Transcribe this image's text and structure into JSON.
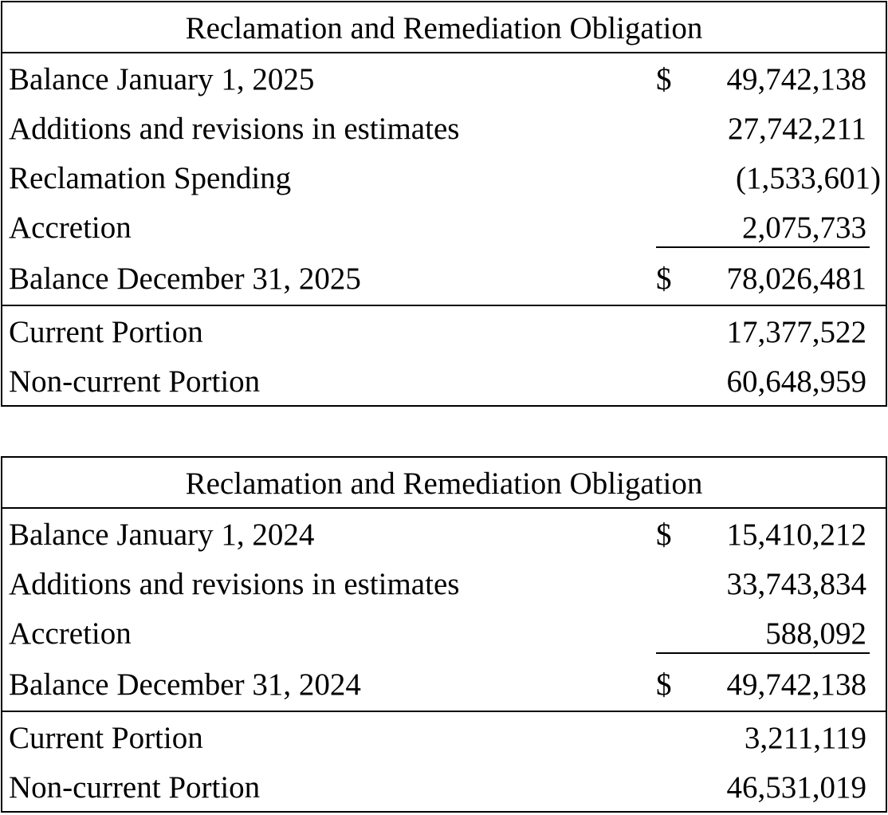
{
  "tables": [
    {
      "title": "Reclamation and Remediation Obligation",
      "rows": [
        {
          "label": "Balance January 1, 2025",
          "currency": "$",
          "amount": "49,742,138"
        },
        {
          "label": "Additions and revisions in estimates",
          "amount": "27,742,211"
        },
        {
          "label": "Reclamation Spending",
          "amount": "(1,533,601)"
        },
        {
          "label": "Accretion",
          "amount": "2,075,733"
        },
        {
          "label": "Balance December 31, 2025",
          "currency": "$",
          "amount": "78,026,481"
        },
        {
          "label": "Current Portion",
          "amount": "17,377,522"
        },
        {
          "label": "Non-current Portion",
          "amount": "60,648,959"
        }
      ]
    },
    {
      "title": "Reclamation and Remediation Obligation",
      "rows": [
        {
          "label": "Balance January 1, 2024",
          "currency": "$",
          "amount": "15,410,212"
        },
        {
          "label": "Additions and revisions in estimates",
          "amount": "33,743,834"
        },
        {
          "label": "Accretion",
          "amount": "588,092"
        },
        {
          "label": "Balance December 31, 2024",
          "currency": "$",
          "amount": "49,742,138"
        },
        {
          "label": "Current Portion",
          "amount": "3,211,119"
        },
        {
          "label": "Non-current Portion",
          "amount": "46,531,019"
        }
      ]
    }
  ]
}
